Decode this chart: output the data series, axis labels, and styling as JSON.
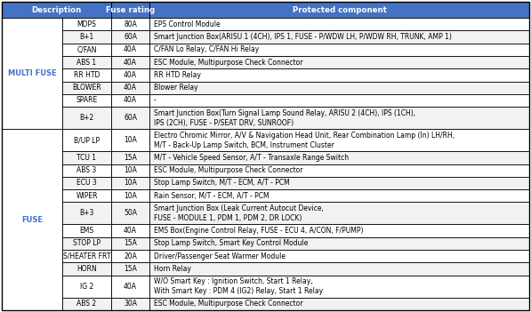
{
  "col_header_bg": "#4472c4",
  "col_header_fg": "#ffffff",
  "group_label_color": "#4472c4",
  "border_color": "#000000",
  "text_color": "#000000",
  "alt_row_bg": "#f2f2f2",
  "white_bg": "#ffffff",
  "groups": [
    {
      "label": "MULTI FUSE",
      "rows": [
        [
          "MDPS",
          "80A",
          "EPS Control Module"
        ],
        [
          "B+1",
          "60A",
          "Smart Junction Box(ARISU 1 (4CH), IPS 1, FUSE - P/WDW LH, P/WDW RH, TRUNK, AMP 1)"
        ],
        [
          "C/FAN",
          "40A",
          "C/FAN Lo Relay, C/FAN Hi Relay"
        ],
        [
          "ABS 1",
          "40A",
          "ESC Module, Multipurpose Check Connector"
        ],
        [
          "RR HTD",
          "40A",
          "RR HTD Relay"
        ],
        [
          "BLOWER",
          "40A",
          "Blower Relay"
        ],
        [
          "SPARE",
          "40A",
          "-"
        ],
        [
          "B+2",
          "60A",
          "Smart Junction Box(Turn Signal Lamp Sound Relay, ARISU 2 (4CH), IPS (1CH),\nIPS (2CH), FUSE - P/SEAT DRV, SUNROOF)"
        ]
      ]
    },
    {
      "label": "FUSE",
      "rows": [
        [
          "B/UP LP",
          "10A",
          "Electro Chromic Mirror, A/V & Navigation Head Unit, Rear Combination Lamp (In) LH/RH,\nM/T - Back-Up Lamp Switch, BCM, Instrument Cluster"
        ],
        [
          "TCU 1",
          "15A",
          "M/T - Vehicle Speed Sensor, A/T - Transaxle Range Switch"
        ],
        [
          "ABS 3",
          "10A",
          "ESC Module, Multipurpose Check Connector"
        ],
        [
          "ECU 3",
          "10A",
          "Stop Lamp Switch, M/T - ECM, A/T - PCM"
        ],
        [
          "WIPER",
          "10A",
          "Rain Sensor, M/T - ECM, A/T - PCM"
        ],
        [
          "B+3",
          "50A",
          "Smart Junction Box (Leak Current Autocut Device,\nFUSE - MODULE 1, PDM 1, PDM 2, DR LOCK)"
        ],
        [
          "EMS",
          "40A",
          "EMS Box(Engine Control Relay, FUSE - ECU 4, A/CON, F/PUMP)"
        ],
        [
          "STOP LP",
          "15A",
          "Stop Lamp Switch, Smart Key Control Module"
        ],
        [
          "S/HEATER FRT",
          "20A",
          "Driver/Passenger Seat Warmer Module"
        ],
        [
          "HORN",
          "15A",
          "Horn Relay"
        ],
        [
          "IG 2",
          "40A",
          "W/O Smart Key : Ignition Switch, Start 1 Relay,\nWith Smart Key : PDM 4 (IG2) Relay, Start 1 Relay"
        ],
        [
          "ABS 2",
          "30A",
          "ESC Module, Multipurpose Check Connector"
        ]
      ]
    }
  ],
  "font_size": 5.5,
  "header_font_size": 6.2,
  "group_font_size": 6.0
}
